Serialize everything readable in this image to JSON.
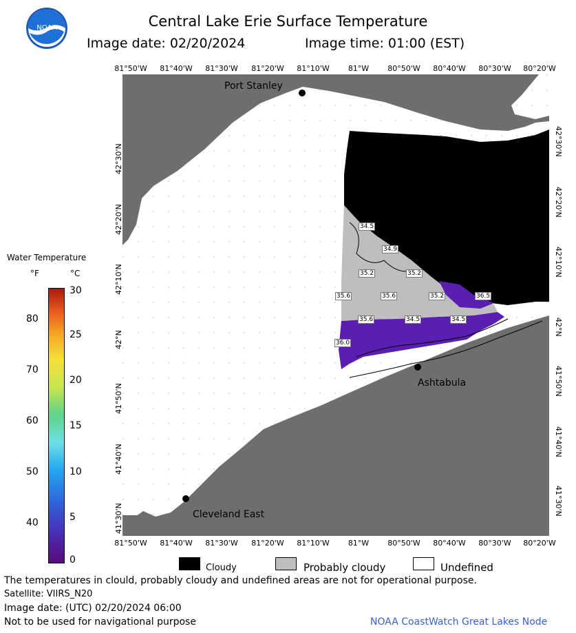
{
  "header": {
    "title": "Central Lake Erie Surface Temperature",
    "image_date": "Image date: 02/20/2024",
    "image_time": "Image time: 01:00 (EST)",
    "logo_text": "NOAA"
  },
  "axes": {
    "lon_top": [
      "81°50'W",
      "81°40'W",
      "81°30'W",
      "81°20'W",
      "81°10'W",
      "81°W",
      "80°50'W",
      "80°40'W",
      "80°30'W",
      "80°20'W"
    ],
    "lon_bottom": [
      "81°50'W",
      "81°40'W",
      "81°30'W",
      "81°20'W",
      "81°10'W",
      "81°W",
      "80°50'W",
      "80°40'W",
      "80°30'W",
      "80°20'W"
    ],
    "lat_left": [
      "42°30'N",
      "42°20'N",
      "42°10'N",
      "42°N",
      "41°50'N",
      "41°40'N",
      "41°30'N"
    ],
    "lat_right": [
      "42°30'N",
      "42°20'N",
      "42°10'N",
      "42°N",
      "41°50'N",
      "41°40'N",
      "41°30'N"
    ]
  },
  "map": {
    "cities": [
      "Port Stanley",
      "Ashtabula",
      "Cleveland East"
    ],
    "temp_labels": [
      "34.5",
      "34.9",
      "35.2",
      "35.2",
      "35.6",
      "35.6",
      "35.2",
      "36.5",
      "35.6",
      "34.5",
      "34.5",
      "36.0"
    ],
    "colors": {
      "land": "#6e6e6e",
      "water": "#ffffff",
      "cloud": "#000000",
      "probably_cloudy": "#bebebe",
      "cold": "#5a1fb0"
    }
  },
  "colorbar": {
    "title": "Water Temperature",
    "unit_f": "°F",
    "unit_c": "°C",
    "f_ticks": [
      "80",
      "70",
      "60",
      "50",
      "40"
    ],
    "c_ticks": [
      "30",
      "25",
      "20",
      "15",
      "10",
      "5",
      "0"
    ]
  },
  "legend": {
    "cloudy": "Cloudy",
    "probably_cloudy": "Probably cloudy",
    "undefined": "Undefined"
  },
  "footer": {
    "disclaimer": "The temperatures in clould, probably cloudy and undefined areas are not for operational purpose.",
    "satellite": "Satellite: VIIRS_N20",
    "utc_date": "Image date: (UTC) 02/20/2024  06:00",
    "nav_warning": "Not to be used for navigational purpose",
    "credit": "NOAA CoastWatch Great Lakes Node"
  }
}
